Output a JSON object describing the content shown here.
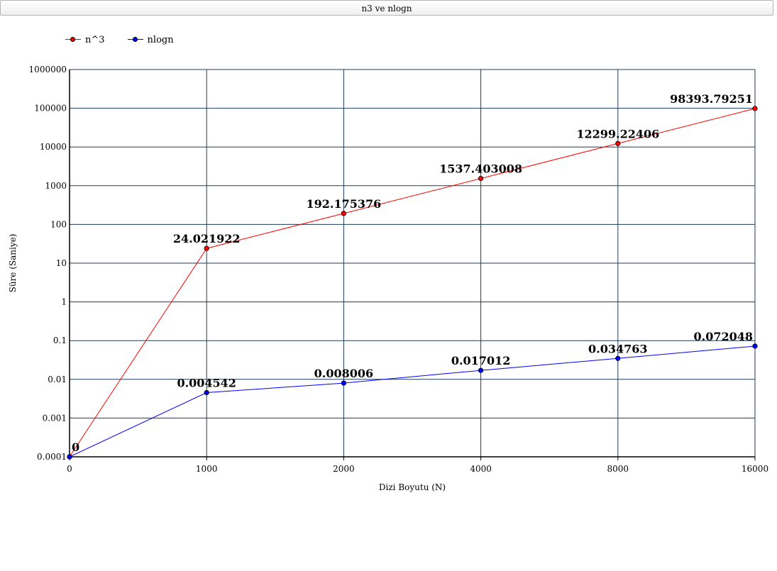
{
  "title_bar": {
    "text": "n3 ve nlogn"
  },
  "chart_data": {
    "type": "line",
    "title": "n3 ve nlogn",
    "xlabel": "Dizi Boyutu (N)",
    "ylabel": "Süre (Saniye)",
    "categories": [
      "0",
      "1000",
      "2000",
      "4000",
      "8000",
      "16000"
    ],
    "y_scale": "log",
    "ylim": [
      0.0001,
      1000000
    ],
    "yticks": [
      "0.0001",
      "0.001",
      "0.01",
      "0.1",
      "1",
      "10",
      "100",
      "1000",
      "10000",
      "100000",
      "1000000"
    ],
    "grid": true,
    "legend_position": "top-left",
    "series": [
      {
        "name": "n^3",
        "color": "#ff0000",
        "values": [
          0,
          24.021922,
          192.175376,
          1537.403008,
          12299.22406,
          98393.79251
        ],
        "labels": [
          "0",
          "24.021922",
          "192.175376",
          "1537.403008",
          "12299.22406",
          "98393.79251"
        ]
      },
      {
        "name": "nlogn",
        "color": "#0000ff",
        "values": [
          0,
          0.004542,
          0.008006,
          0.017012,
          0.034763,
          0.072048
        ],
        "labels": [
          "",
          "0.004542",
          "0.008006",
          "0.017012",
          "0.034763",
          "0.072048"
        ]
      }
    ]
  }
}
